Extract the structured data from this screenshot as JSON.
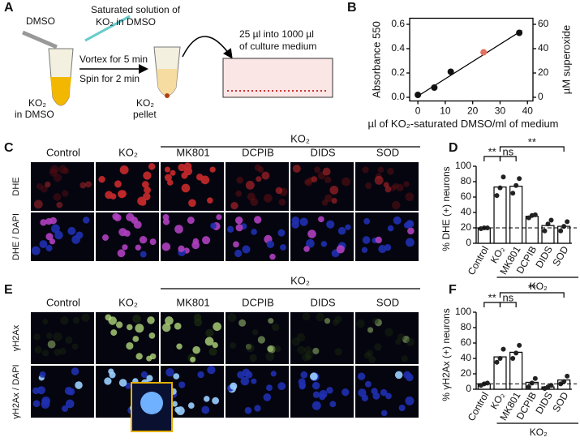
{
  "panel_labels": [
    "A",
    "B",
    "C",
    "D",
    "E",
    "F"
  ],
  "protocol": {
    "solvent": "DMSO",
    "saturated": [
      "Saturated solution of",
      "KO₂ in DMSO"
    ],
    "steps": [
      "Vortex for 5 min",
      "Spin for 2 min"
    ],
    "start": [
      "KO₂",
      "in DMSO"
    ],
    "pellet": [
      "KO₂",
      "pellet"
    ],
    "transfer": [
      "25 µl into 1000 µl",
      "of culture medium"
    ]
  },
  "microscopy": [
    {
      "group": "KO₂",
      "columns": [
        "Control",
        "KO₂",
        "MK801",
        "DCPIB",
        "DIDS",
        "SOD"
      ],
      "rows": [
        "DHE",
        "DHE / DAPI"
      ]
    },
    {
      "group": "KO₂",
      "columns": [
        "Control",
        "KO₂",
        "MK801",
        "DCPIB",
        "DIDS",
        "SOD"
      ],
      "rows": [
        "γH2Ax",
        "γH2Ax / DAPI"
      ]
    }
  ],
  "chart_data": [
    {
      "type": "scatter",
      "xlabel": "µl of KO₂-saturated DMSO/ml of medium",
      "ylabel": "Absorbance 550",
      "y2label": "µM superoxide",
      "x": [
        0,
        6,
        12,
        37
      ],
      "values": [
        0.02,
        0.08,
        0.21,
        0.53
      ],
      "color": "#111111",
      "highlight": {
        "x": [
          24
        ],
        "values": [
          0.37
        ],
        "color": "#e07060"
      },
      "fit": {
        "x": [
          0,
          38
        ],
        "values": [
          0.01,
          0.55
        ]
      },
      "xlim": [
        -3,
        42
      ],
      "xticks": [
        0,
        10,
        20,
        30,
        40
      ],
      "ylim": [
        -0.03,
        0.65
      ],
      "yticks": [
        {
          "value": 0,
          "label": "0.0"
        },
        {
          "value": 0.2,
          "label": "0.2"
        },
        {
          "value": 0.4,
          "label": "0.4"
        },
        {
          "value": 0.6,
          "label": "0.6"
        }
      ],
      "y2lim": [
        -3,
        65
      ],
      "y2ticks": [
        0,
        20,
        40,
        60
      ]
    },
    {
      "type": "bar",
      "ylabel": "% DHE (+) neurons",
      "categories": [
        "Control",
        "KO₂",
        "MK801",
        "DCPIB",
        "DIDS",
        "SOD"
      ],
      "values": [
        20,
        73,
        74,
        35,
        23,
        22
      ],
      "points": [
        [
          19,
          20,
          20
        ],
        [
          62,
          72,
          86
        ],
        [
          65,
          75,
          84
        ],
        [
          33,
          36,
          37
        ],
        [
          16,
          25,
          30
        ],
        [
          16,
          22,
          28
        ]
      ],
      "reference": 20,
      "annotations": [
        "**",
        "ns",
        "**"
      ],
      "group": "KO₂",
      "color": "#ffffff",
      "ylim": [
        0,
        100
      ],
      "yticks": [
        0,
        20,
        40,
        60,
        80,
        100
      ]
    },
    {
      "type": "bar",
      "ylabel": "% γH2Ax (+) neurons",
      "categories": [
        "Control",
        "KO₂",
        "MK801",
        "DCPIB",
        "DIDS",
        "SOD"
      ],
      "values": [
        7,
        42,
        48,
        9,
        3,
        12
      ],
      "points": [
        [
          5,
          7,
          8
        ],
        [
          35,
          40,
          52
        ],
        [
          40,
          47,
          57
        ],
        [
          3,
          8,
          14
        ],
        [
          1,
          3,
          5
        ],
        [
          7,
          10,
          17
        ]
      ],
      "reference": 7,
      "annotations": [
        "**",
        "ns",
        "**"
      ],
      "group": "KO₂",
      "color": "#ffffff",
      "ylim": [
        0,
        100
      ],
      "yticks": [
        0,
        20,
        40,
        60,
        80,
        100
      ]
    }
  ]
}
